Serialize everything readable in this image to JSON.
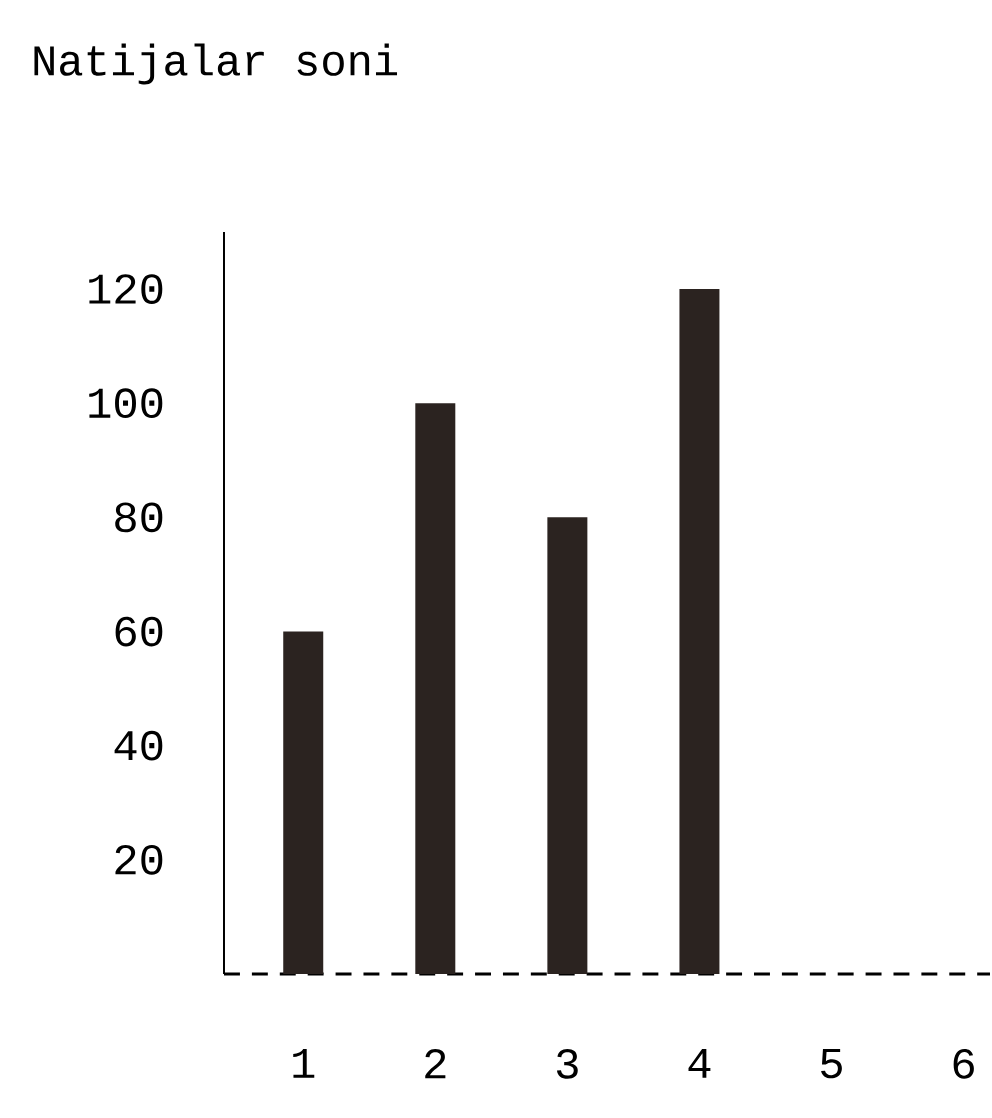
{
  "chart_data": {
    "type": "bar",
    "title": "Natijalar soni",
    "categories": [
      "1",
      "2",
      "3",
      "4",
      "5",
      "6"
    ],
    "values": [
      60,
      100,
      80,
      120,
      0,
      0
    ],
    "color": "#2b2320",
    "ylim": [
      0,
      130
    ],
    "yticks": [
      20,
      40,
      60,
      80,
      100,
      120
    ],
    "grid": false
  }
}
